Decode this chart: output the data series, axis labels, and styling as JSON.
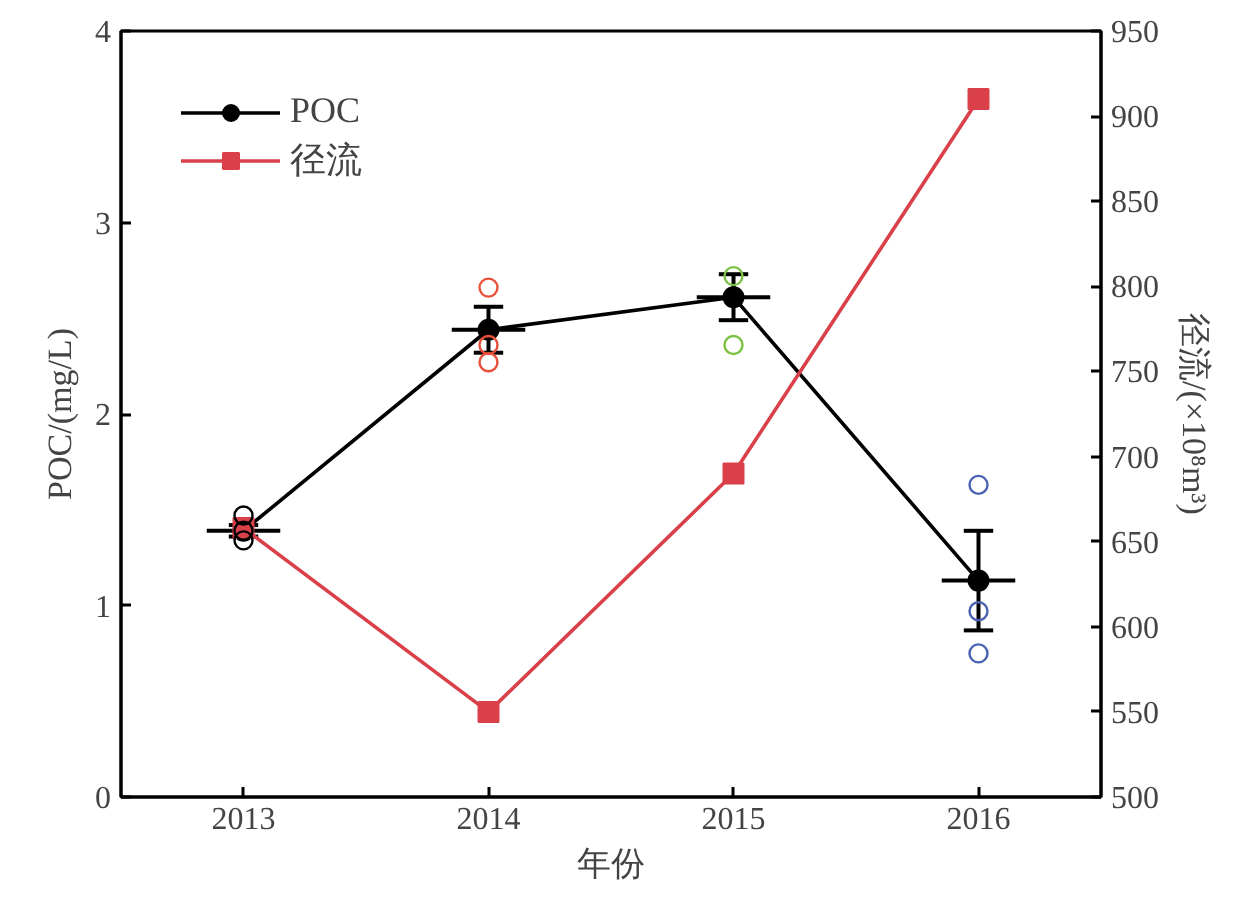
{
  "chart_data": {
    "type": "line",
    "xlabel": "年份",
    "ylabel": "POC/(mg/L)",
    "y2label": "径流/(×10⁸m³)",
    "x": [
      2013,
      2014,
      2015,
      2016
    ],
    "xlim": [
      2012.5,
      2016.5
    ],
    "xticks": [
      2013,
      2014,
      2015,
      2016
    ],
    "ylim": [
      0,
      4
    ],
    "yticks": [
      0,
      1,
      2,
      3,
      4
    ],
    "y2lim": [
      500,
      950
    ],
    "y2ticks": [
      500,
      550,
      600,
      650,
      700,
      750,
      800,
      850,
      900,
      950
    ],
    "legend": "top left",
    "grid": false,
    "series": [
      {
        "name": "POC",
        "color": "#000000",
        "marker": "circle",
        "values": [
          1.39,
          2.44,
          2.61,
          1.13
        ],
        "errors": [
          0.03,
          0.12,
          0.12,
          0.26
        ],
        "xerrors": [
          0.15,
          0.15,
          0.15,
          0.15
        ]
      },
      {
        "name": "径流",
        "axis": "y2",
        "color": "#d9404a",
        "marker": "square",
        "values": [
          658,
          550,
          690,
          910
        ]
      },
      {
        "type": "scatter",
        "color": "#000000",
        "marker": "circle",
        "x": [
          2013,
          2013,
          2013
        ],
        "values": [
          1.47,
          1.39,
          1.34
        ]
      },
      {
        "type": "scatter",
        "color": "#e8503a",
        "marker": "circle",
        "x": [
          2014,
          2014,
          2014
        ],
        "values": [
          2.66,
          2.36,
          2.27
        ]
      },
      {
        "type": "scatter",
        "color": "#7cc242",
        "marker": "circle",
        "x": [
          2015,
          2015
        ],
        "values": [
          2.72,
          2.36
        ]
      },
      {
        "type": "scatter",
        "color": "#4a62b0",
        "marker": "circle",
        "x": [
          2016,
          2016,
          2016
        ],
        "values": [
          1.63,
          0.97,
          0.75
        ]
      }
    ]
  }
}
